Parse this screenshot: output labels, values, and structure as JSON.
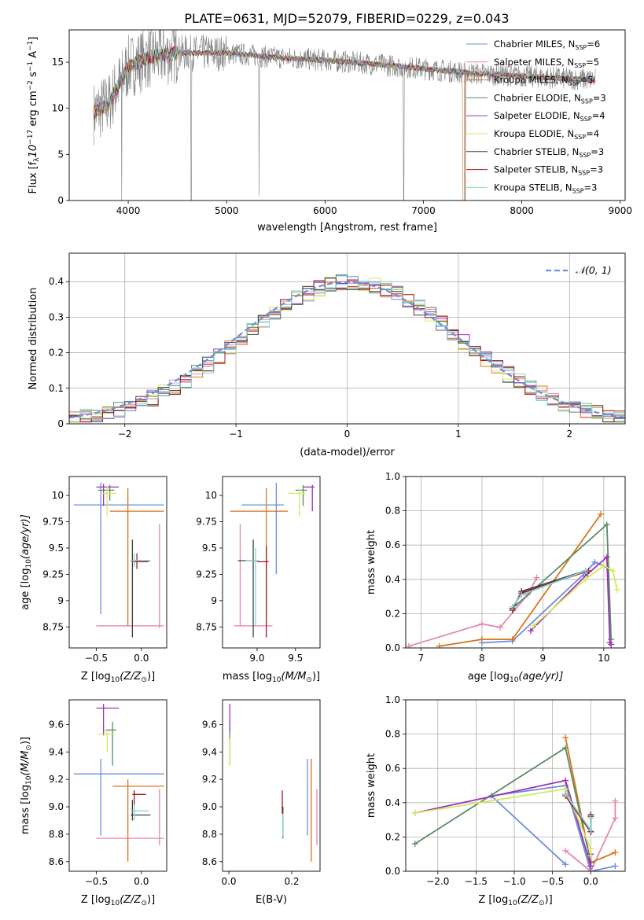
{
  "figure_title": "PLATE=0631, MJD=52079, FIBERID=0229, z=0.043",
  "series_colors": [
    "#6b8fd8",
    "#e586b4",
    "#d9761e",
    "#5b8c64",
    "#9b33b5",
    "#d7e85e",
    "#404040",
    "#a31a1a",
    "#80d4d8"
  ],
  "series_labels": [
    {
      "name": "Chabrier MILES, N",
      "sub": "SSP",
      "suffix": "=6"
    },
    {
      "name": "Salpeter MILES, N",
      "sub": "SSP",
      "suffix": "=5"
    },
    {
      "name": "Kroupa MILES, N",
      "sub": "SSP",
      "suffix": "=5"
    },
    {
      "name": "Chabrier ELODIE, N",
      "sub": "SSP",
      "suffix": "=3"
    },
    {
      "name": "Salpeter ELODIE, N",
      "sub": "SSP",
      "suffix": "=4"
    },
    {
      "name": "Kroupa ELODIE, N",
      "sub": "SSP",
      "suffix": "=4"
    },
    {
      "name": "Chabrier STELIB, N",
      "sub": "SSP",
      "suffix": "=3"
    },
    {
      "name": "Salpeter STELIB, N",
      "sub": "SSP",
      "suffix": "=3"
    },
    {
      "name": "Kroupa STELIB, N",
      "sub": "SSP",
      "suffix": "=3"
    }
  ],
  "chart_data": [
    {
      "id": "spectrum",
      "type": "line",
      "xlabel": "wavelength [Angstrom, rest frame]",
      "ylabel": "Flux [f",
      "ylabel_sub": "λ",
      "ylabel_rest": "10",
      "ylabel_exp": "−17",
      "ylabel_units": " erg cm",
      "ylabel_exp2": "−2",
      "ylabel_s": " s",
      "ylabel_exp3": "−1",
      "ylabel_A": " A",
      "ylabel_exp4": "−1",
      "ylabel_end": "]",
      "xlim": [
        3400,
        9050
      ],
      "ylim": [
        0,
        18.5
      ],
      "xticks": [
        4000,
        5000,
        6000,
        7000,
        8000,
        9000
      ],
      "yticks": [
        0,
        5,
        10,
        15
      ],
      "legend": "right",
      "continuum_knots": [
        [
          3650,
          9.5
        ],
        [
          3800,
          10.5
        ],
        [
          3900,
          12.5
        ],
        [
          4000,
          14.5
        ],
        [
          4200,
          15.5
        ],
        [
          4500,
          16.0
        ],
        [
          5000,
          16.0
        ],
        [
          5500,
          15.5
        ],
        [
          6000,
          15.2
        ],
        [
          6500,
          14.8
        ],
        [
          7000,
          14.3
        ],
        [
          7500,
          13.8
        ],
        [
          8000,
          13.5
        ],
        [
          8500,
          13.2
        ],
        [
          8750,
          13.1
        ]
      ],
      "dips": [
        [
          3934,
          0
        ],
        [
          4640,
          0
        ],
        [
          5330,
          0.5
        ],
        [
          6800,
          0
        ],
        [
          7420,
          0
        ]
      ]
    },
    {
      "id": "residual_hist",
      "type": "histogram",
      "xlabel": "(data-model)/error",
      "ylabel": "Normed distribution",
      "xlim": [
        -2.5,
        2.5
      ],
      "ylim": [
        0,
        0.48
      ],
      "xticks": [
        -2,
        -1,
        0,
        1,
        2
      ],
      "yticks": [
        0,
        0.1,
        0.2,
        0.3,
        0.4
      ],
      "grid": true,
      "bin_width": 0.1,
      "reference_label": "𝒩(0, 1)",
      "reference_color": "#6b8fd8",
      "legend": "top-right"
    },
    {
      "id": "age_vs_Z",
      "type": "errorbar",
      "xlabel": "Z [log",
      "xlabel_sub": "10",
      "xlabel_rest": "(Z/Z",
      "xlabel_sub2": "⊙",
      "xlabel_end": ")]",
      "ylabel": "age  [log",
      "ylabel_sub": "10",
      "ylabel_rest": "(age/yr)]",
      "xlim": [
        -0.8,
        0.28
      ],
      "ylim": [
        8.55,
        10.18
      ],
      "xticks": [
        -0.5,
        0.0
      ],
      "xticklabels": [
        "−0.5",
        "0.0"
      ],
      "yticks": [
        8.75,
        9.0,
        9.25,
        9.5,
        9.75,
        10.0
      ],
      "points": [
        {
          "x": -0.45,
          "xe": [
            -0.75,
            0.25
          ],
          "y": 9.91,
          "ye": [
            8.87,
            10.12
          ],
          "c": 0
        },
        {
          "x": 0.2,
          "xe": [
            -0.5,
            0.25
          ],
          "y": 8.76,
          "ye": [
            8.74,
            9.73
          ],
          "c": 1
        },
        {
          "x": -0.15,
          "xe": [
            -0.35,
            0.25
          ],
          "y": 9.85,
          "ye": [
            8.76,
            10.07
          ],
          "c": 2
        },
        {
          "x": -0.35,
          "xe": [
            -0.48,
            -0.3
          ],
          "y": 10.05,
          "ye": [
            9.95,
            10.1
          ],
          "c": 3
        },
        {
          "x": -0.42,
          "xe": [
            -0.5,
            -0.25
          ],
          "y": 10.08,
          "ye": [
            9.9,
            10.11
          ],
          "c": 4
        },
        {
          "x": -0.38,
          "xe": [
            -0.45,
            -0.28
          ],
          "y": 10.02,
          "ye": [
            9.8,
            10.09
          ],
          "c": 5
        },
        {
          "x": -0.1,
          "xe": [
            -0.12,
            0.1
          ],
          "y": 9.38,
          "ye": [
            8.65,
            9.58
          ],
          "c": 6
        },
        {
          "x": -0.05,
          "xe": [
            -0.1,
            0.08
          ],
          "y": 9.37,
          "ye": [
            9.3,
            9.45
          ],
          "c": 7
        },
        {
          "x": -0.08,
          "xe": [
            -0.12,
            0.1
          ],
          "y": 9.38,
          "ye": [
            9.32,
            9.45
          ],
          "c": 8
        }
      ]
    },
    {
      "id": "age_vs_mass",
      "type": "errorbar",
      "xlabel": "mass [log",
      "xlabel_sub": "10",
      "xlabel_rest": "(M/M",
      "xlabel_sub2": "⊙",
      "xlabel_end": ")]",
      "ylabel": "",
      "xlim": [
        8.55,
        9.82
      ],
      "ylim": [
        8.55,
        10.18
      ],
      "xticks": [
        9.0,
        9.5
      ],
      "xticklabels": [
        "9.0",
        "9.5"
      ],
      "yticks": [
        8.75,
        9.0,
        9.25,
        9.5,
        9.75,
        10.0
      ],
      "points": [
        {
          "x": 9.25,
          "xe": [
            8.8,
            9.35
          ],
          "y": 9.91,
          "ye": [
            9.25,
            10.12
          ],
          "c": 0
        },
        {
          "x": 8.78,
          "xe": [
            8.7,
            9.2
          ],
          "y": 8.76,
          "ye": [
            8.76,
            9.73
          ],
          "c": 1
        },
        {
          "x": 9.12,
          "xe": [
            8.65,
            9.4
          ],
          "y": 9.85,
          "ye": [
            8.8,
            10.07
          ],
          "c": 2
        },
        {
          "x": 9.6,
          "xe": [
            9.5,
            9.65
          ],
          "y": 10.05,
          "ye": [
            9.9,
            10.1
          ],
          "c": 3
        },
        {
          "x": 9.72,
          "xe": [
            9.6,
            9.75
          ],
          "y": 10.08,
          "ye": [
            9.85,
            10.1
          ],
          "c": 4
        },
        {
          "x": 9.55,
          "xe": [
            9.4,
            9.62
          ],
          "y": 10.02,
          "ye": [
            9.8,
            10.06
          ],
          "c": 5
        },
        {
          "x": 8.95,
          "xe": [
            8.75,
            9.0
          ],
          "y": 9.38,
          "ye": [
            8.65,
            9.58
          ],
          "c": 6
        },
        {
          "x": 9.12,
          "xe": [
            9.0,
            9.15
          ],
          "y": 9.37,
          "ye": [
            8.65,
            9.52
          ],
          "c": 7
        },
        {
          "x": 8.98,
          "xe": [
            8.85,
            9.02
          ],
          "y": 9.38,
          "ye": [
            8.75,
            9.5
          ],
          "c": 8
        }
      ]
    },
    {
      "id": "weight_vs_age",
      "type": "line",
      "xlabel": "age  [log",
      "xlabel_sub": "10",
      "xlabel_rest": "(age/yr)]",
      "ylabel": "mass weight",
      "xlim": [
        6.75,
        10.35
      ],
      "ylim": [
        0,
        1.0
      ],
      "xticks": [
        7,
        8,
        9,
        10
      ],
      "yticks": [
        0.0,
        0.2,
        0.4,
        0.6,
        0.8,
        1.0
      ],
      "yticklabels": [
        "0.0",
        "0.2",
        "0.4",
        "0.6",
        "0.8",
        "1.0"
      ],
      "grid": true,
      "series": [
        {
          "c": 0,
          "x": [
            8.0,
            8.5,
            9.7,
            9.85,
            10.05
          ],
          "y": [
            0.03,
            0.04,
            0.44,
            0.5,
            0.47
          ]
        },
        {
          "c": 1,
          "x": [
            6.8,
            8.0,
            8.3,
            8.75,
            8.9
          ],
          "y": [
            0.01,
            0.14,
            0.12,
            0.31,
            0.41
          ]
        },
        {
          "c": 2,
          "x": [
            7.3,
            8.0,
            8.5,
            9.95
          ],
          "y": [
            0.01,
            0.05,
            0.05,
            0.78
          ]
        },
        {
          "c": 3,
          "x": [
            8.5,
            10.05,
            10.12
          ],
          "y": [
            0.23,
            0.72,
            0.05
          ]
        },
        {
          "c": 4,
          "x": [
            8.8,
            9.7,
            10.05,
            10.1,
            10.12
          ],
          "y": [
            0.1,
            0.42,
            0.53,
            0.03,
            0.02
          ]
        },
        {
          "c": 5,
          "x": [
            8.85,
            9.7,
            10.0,
            10.15,
            10.22
          ],
          "y": [
            0.13,
            0.4,
            0.48,
            0.45,
            0.34
          ]
        },
        {
          "c": 6,
          "x": [
            8.5,
            8.65,
            9.7
          ],
          "y": [
            0.22,
            0.33,
            0.45
          ]
        },
        {
          "c": 7,
          "x": [
            8.5,
            8.65,
            9.75
          ],
          "y": [
            0.23,
            0.32,
            0.45
          ]
        },
        {
          "c": 8,
          "x": [
            8.5,
            8.65,
            9.7
          ],
          "y": [
            0.24,
            0.31,
            0.45
          ]
        }
      ]
    },
    {
      "id": "mass_vs_Z",
      "type": "errorbar",
      "xlabel": "Z [log",
      "xlabel_sub": "10",
      "xlabel_rest": "(Z/Z",
      "xlabel_sub2": "⊙",
      "xlabel_end": ")]",
      "ylabel": "mass [log",
      "ylabel_sub": "10",
      "ylabel_rest": "(M/M",
      "ylabel_sub2": "⊙",
      "ylabel_end": ")]",
      "xlim": [
        -0.8,
        0.28
      ],
      "ylim": [
        8.53,
        9.78
      ],
      "xticks": [
        -0.5,
        0.0
      ],
      "xticklabels": [
        "−0.5",
        "0.0"
      ],
      "yticks": [
        8.6,
        8.8,
        9.0,
        9.2,
        9.4,
        9.6
      ],
      "yticklabels": [
        "8.6",
        "8.8",
        "9.0",
        "9.2",
        "9.4",
        "9.6"
      ],
      "points": [
        {
          "x": -0.45,
          "xe": [
            -0.75,
            0.25
          ],
          "y": 9.24,
          "ye": [
            8.79,
            9.35
          ],
          "c": 0
        },
        {
          "x": 0.2,
          "xe": [
            -0.5,
            0.25
          ],
          "y": 8.77,
          "ye": [
            8.72,
            9.13
          ],
          "c": 1
        },
        {
          "x": -0.15,
          "xe": [
            -0.32,
            0.25
          ],
          "y": 9.15,
          "ye": [
            8.6,
            9.2
          ],
          "c": 2
        },
        {
          "x": -0.32,
          "xe": [
            -0.4,
            -0.28
          ],
          "y": 9.56,
          "ye": [
            9.3,
            9.62
          ],
          "c": 3
        },
        {
          "x": -0.42,
          "xe": [
            -0.5,
            -0.25
          ],
          "y": 9.72,
          "ye": [
            9.52,
            9.75
          ],
          "c": 4
        },
        {
          "x": -0.38,
          "xe": [
            -0.48,
            -0.3
          ],
          "y": 9.53,
          "ye": [
            9.4,
            9.56
          ],
          "c": 5
        },
        {
          "x": -0.1,
          "xe": [
            -0.12,
            0.1
          ],
          "y": 8.94,
          "ye": [
            8.9,
            9.05
          ],
          "c": 6
        },
        {
          "x": -0.08,
          "xe": [
            -0.1,
            0.05
          ],
          "y": 9.09,
          "ye": [
            9.0,
            9.12
          ],
          "c": 7
        },
        {
          "x": -0.08,
          "xe": [
            -0.12,
            0.08
          ],
          "y": 8.97,
          "ye": [
            8.9,
            9.02
          ],
          "c": 8
        }
      ]
    },
    {
      "id": "mass_vs_EBV",
      "type": "errorbar",
      "xlabel": "E(B-V)",
      "ylabel": "",
      "xlim": [
        -0.02,
        0.29
      ],
      "ylim": [
        8.53,
        9.78
      ],
      "xticks": [
        0.0,
        0.2
      ],
      "xticklabels": [
        "0.0",
        "0.2"
      ],
      "yticks": [
        8.6,
        8.8,
        9.0,
        9.2,
        9.4,
        9.6
      ],
      "yticklabels": [
        "8.6",
        "8.8",
        "9.0",
        "9.2",
        "9.4",
        "9.6"
      ],
      "points": [
        {
          "x": 0.25,
          "xe": [
            0.25,
            0.25
          ],
          "y": 9.24,
          "ye": [
            8.79,
            9.35
          ],
          "c": 0
        },
        {
          "x": 0.28,
          "xe": [
            0.28,
            0.28
          ],
          "y": 8.77,
          "ye": [
            8.72,
            9.13
          ],
          "c": 1
        },
        {
          "x": 0.262,
          "xe": [
            0.262,
            0.262
          ],
          "y": 9.15,
          "ye": [
            8.6,
            9.35
          ],
          "c": 2
        },
        {
          "x": 0.003,
          "xe": [
            0.003,
            0.003
          ],
          "y": 9.56,
          "ye": [
            9.3,
            9.62
          ],
          "c": 3
        },
        {
          "x": 0.003,
          "xe": [
            0.003,
            0.003
          ],
          "y": 9.72,
          "ye": [
            9.55,
            9.75
          ],
          "c": 4
        },
        {
          "x": 0.003,
          "xe": [
            0.003,
            0.003
          ],
          "y": 9.4,
          "ye": [
            9.3,
            9.5
          ],
          "c": 5
        },
        {
          "x": 0.172,
          "xe": [
            0.172,
            0.172
          ],
          "y": 8.9,
          "ye": [
            8.77,
            9.0
          ],
          "c": 6
        },
        {
          "x": 0.17,
          "xe": [
            0.17,
            0.17
          ],
          "y": 9.05,
          "ye": [
            8.95,
            9.12
          ],
          "c": 7
        },
        {
          "x": 0.172,
          "xe": [
            0.172,
            0.172
          ],
          "y": 8.85,
          "ye": [
            8.78,
            8.95
          ],
          "c": 8
        }
      ]
    },
    {
      "id": "weight_vs_Z",
      "type": "line",
      "xlabel": "Z [log",
      "xlabel_sub": "10",
      "xlabel_rest": "(Z/Z",
      "xlabel_sub2": "⊙",
      "xlabel_end": ")]",
      "ylabel": "mass weight",
      "xlim": [
        -2.42,
        0.45
      ],
      "ylim": [
        0,
        1.0
      ],
      "xticks": [
        -2.0,
        -1.5,
        -1.0,
        -0.5,
        0.0
      ],
      "xticklabels": [
        "−2.0",
        "−1.5",
        "−1.0",
        "−0.5",
        "0.0"
      ],
      "yticks": [
        0.0,
        0.2,
        0.4,
        0.6,
        0.8,
        1.0
      ],
      "yticklabels": [
        "0.0",
        "0.2",
        "0.4",
        "0.6",
        "0.8",
        "1.0"
      ],
      "grid": true,
      "series": [
        {
          "c": 0,
          "x": [
            -0.33,
            -1.3,
            -0.33,
            0.0,
            0.0,
            0.32
          ],
          "y": [
            0.04,
            0.44,
            0.5,
            0.0,
            0.0,
            0.03
          ]
        },
        {
          "c": 1,
          "x": [
            -0.33,
            0.0,
            0.32,
            0.32
          ],
          "y": [
            0.12,
            0.0,
            0.31,
            0.41
          ]
        },
        {
          "c": 2,
          "x": [
            -0.33,
            0.0,
            0.32
          ],
          "y": [
            0.78,
            0.05,
            0.11
          ]
        },
        {
          "c": 3,
          "x": [
            -2.3,
            -0.33,
            0.0
          ],
          "y": [
            0.16,
            0.72,
            0.05
          ]
        },
        {
          "c": 4,
          "x": [
            -2.3,
            -0.33,
            0.0,
            0.0
          ],
          "y": [
            0.34,
            0.53,
            0.03,
            0.1
          ]
        },
        {
          "c": 5,
          "x": [
            -2.3,
            -0.33,
            0.0,
            0.0
          ],
          "y": [
            0.34,
            0.48,
            0.13,
            0.09
          ]
        },
        {
          "c": 6,
          "x": [
            -0.33,
            0.0,
            0.0
          ],
          "y": [
            0.45,
            0.23,
            0.33
          ]
        },
        {
          "c": 7,
          "x": [
            -0.33,
            0.0,
            0.0
          ],
          "y": [
            0.44,
            0.23,
            0.32
          ]
        },
        {
          "c": 8,
          "x": [
            -0.33,
            0.0,
            0.0
          ],
          "y": [
            0.45,
            0.24,
            0.31
          ]
        }
      ]
    }
  ]
}
